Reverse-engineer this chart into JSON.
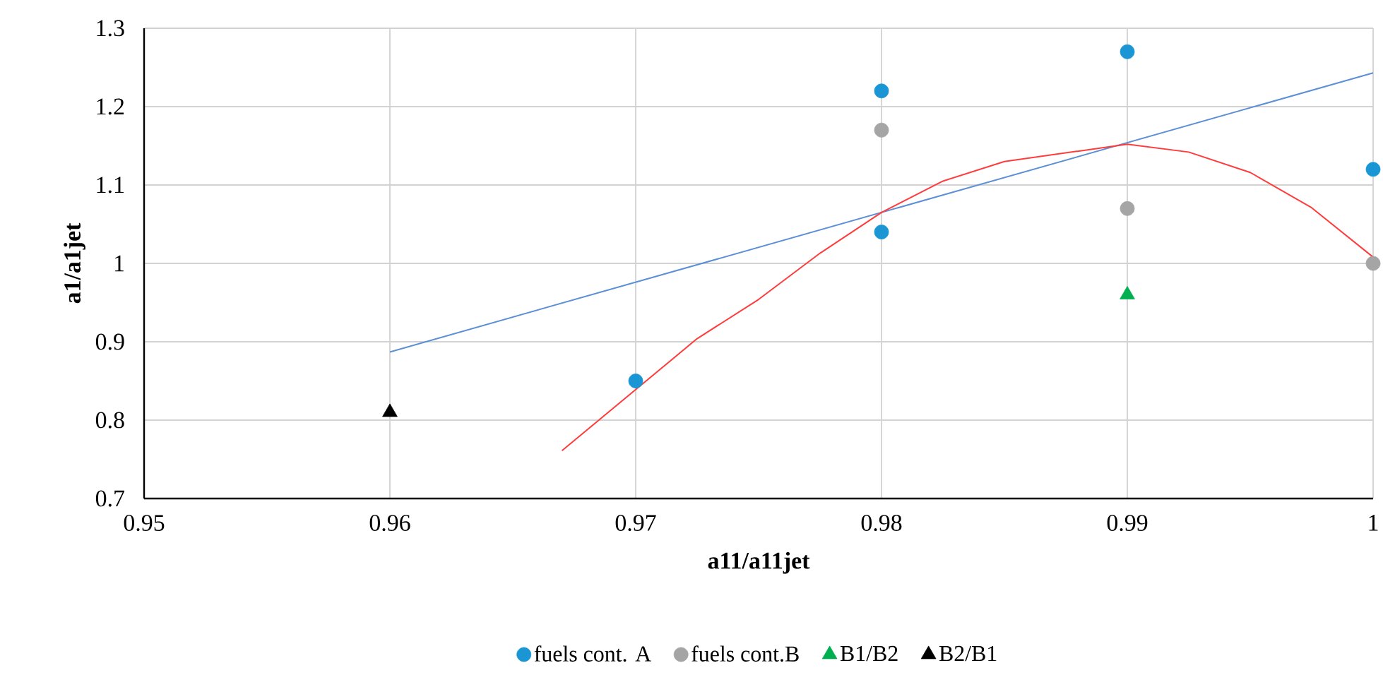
{
  "chart_data": {
    "type": "scatter",
    "xlabel": "a11/a11jet",
    "ylabel": "a1/a1jet",
    "xlim": [
      0.95,
      1.0
    ],
    "xticks": [
      0.95,
      0.96,
      0.97,
      0.98,
      0.99,
      {
        "value": 1.0,
        "label": "1"
      }
    ],
    "ylim": [
      0.7,
      1.3
    ],
    "yticks": [
      0.7,
      0.8,
      0.9,
      {
        "value": 1.0,
        "label": "1"
      },
      1.1,
      1.2,
      1.3
    ],
    "grid": true,
    "legend": "bottom",
    "series": [
      {
        "name": "fuels cont. A",
        "color": "#1a96d4",
        "marker": "circle",
        "x": [
          0.97,
          0.98,
          0.98,
          0.99,
          1.0
        ],
        "values": [
          0.85,
          1.22,
          1.04,
          1.27,
          1.12
        ]
      },
      {
        "name": "fuels cont.B",
        "color": "#a5a5a5",
        "marker": "circle",
        "x": [
          0.98,
          0.99,
          1.0
        ],
        "values": [
          1.17,
          1.07,
          1.0
        ]
      },
      {
        "name": "B1/B2",
        "color": "#00b050",
        "marker": "triangle",
        "x": [
          0.99
        ],
        "values": [
          0.96
        ]
      },
      {
        "name": "B2/B1",
        "color": "#000000",
        "marker": "triangle",
        "x": [
          0.96
        ],
        "values": [
          0.81
        ]
      },
      {
        "type": "line",
        "color": "#5b8fd6",
        "marker": "none",
        "x": [
          0.96,
          1.0
        ],
        "values": [
          0.887,
          1.243
        ]
      },
      {
        "type": "line",
        "color": "#ff3b3b",
        "marker": "none",
        "x": [
          0.967,
          0.9725,
          0.975,
          0.9775,
          0.98,
          0.9825,
          0.985,
          0.99,
          0.9925,
          0.995,
          0.9975,
          1.0
        ],
        "values": [
          0.761,
          0.904,
          0.954,
          1.013,
          1.065,
          1.105,
          1.13,
          1.152,
          1.142,
          1.116,
          1.071,
          1.008
        ]
      }
    ]
  }
}
